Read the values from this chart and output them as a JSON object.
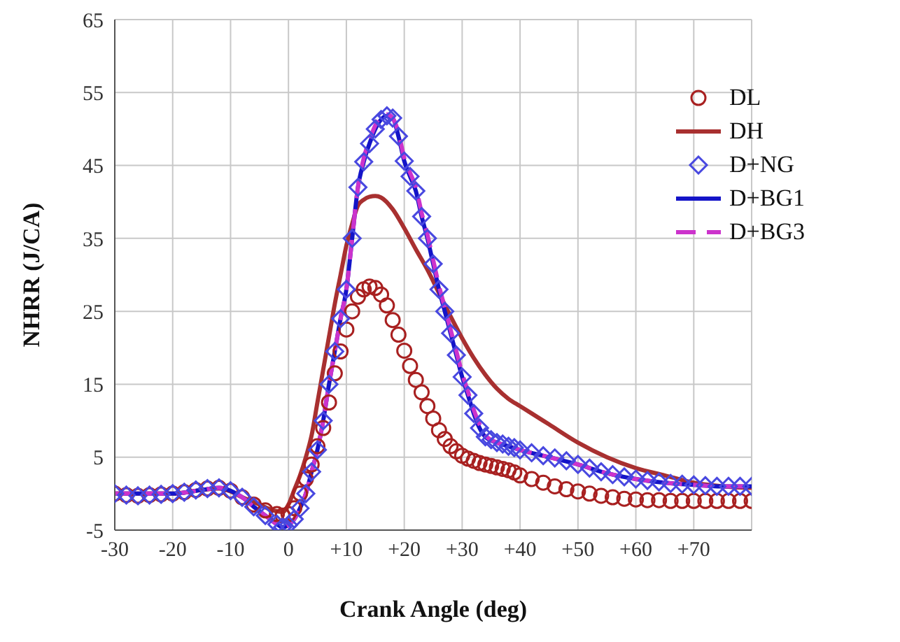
{
  "chart_data": {
    "type": "line",
    "xlabel": "Crank Angle (deg)",
    "ylabel": "NHRR (J/CA)",
    "xlim": [
      -30,
      80
    ],
    "xticks": [
      -30,
      -20,
      -10,
      {
        "value": 0,
        "label": "0"
      },
      {
        "value": 10,
        "label": "+10"
      },
      {
        "value": 20,
        "label": "+20"
      },
      {
        "value": 30,
        "label": "+30"
      },
      {
        "value": 40,
        "label": "+40"
      },
      {
        "value": 50,
        "label": "+50"
      },
      {
        "value": 60,
        "label": "+60"
      },
      {
        "value": 70,
        "label": "+70"
      },
      {
        "value": 80,
        "label": null
      }
    ],
    "ylim": [
      -5,
      65
    ],
    "yticks": [
      -5,
      5,
      15,
      25,
      35,
      45,
      55,
      65
    ],
    "grid": true,
    "legend": "top right",
    "series": [
      {
        "name": "DL",
        "type": "scatter",
        "marker": "circle",
        "color": "#a82020",
        "x": [
          -30,
          -28,
          -26,
          -24,
          -22,
          -20,
          -18,
          -16,
          -14,
          -12,
          -10,
          -8,
          -6,
          -4,
          -2,
          -1,
          0,
          1,
          2,
          3,
          4,
          5,
          6,
          7,
          8,
          9,
          10,
          11,
          12,
          13,
          14,
          15,
          16,
          17,
          18,
          19,
          20,
          21,
          22,
          23,
          24,
          25,
          26,
          27,
          28,
          29,
          30,
          31,
          32,
          33,
          34,
          35,
          36,
          37,
          38,
          39,
          40,
          42,
          44,
          46,
          48,
          50,
          52,
          54,
          56,
          58,
          60,
          62,
          64,
          66,
          68,
          70,
          72,
          74,
          76,
          78,
          80
        ],
        "values": [
          0,
          -0.2,
          -0.3,
          -0.2,
          -0.1,
          0,
          0.2,
          0.5,
          0.7,
          0.8,
          0.4,
          -0.5,
          -1.5,
          -2.3,
          -2.8,
          -3,
          -2.8,
          -2,
          0,
          2,
          4,
          6.5,
          9,
          12.5,
          16.5,
          19.5,
          22.5,
          25,
          27,
          28,
          28.4,
          28.2,
          27.3,
          25.8,
          23.8,
          21.8,
          19.6,
          17.5,
          15.6,
          13.9,
          12,
          10.3,
          8.7,
          7.5,
          6.5,
          5.8,
          5.2,
          4.8,
          4.5,
          4.2,
          4,
          3.8,
          3.6,
          3.4,
          3.2,
          2.9,
          2.5,
          2,
          1.5,
          1,
          0.6,
          0.3,
          0,
          -0.3,
          -0.5,
          -0.7,
          -0.8,
          -0.9,
          -0.9,
          -1,
          -1,
          -1,
          -1,
          -1,
          -1,
          -1,
          -1
        ]
      },
      {
        "name": "DH",
        "type": "line",
        "marker": "none",
        "line_style": "solid",
        "color": "#a83030",
        "x": [
          -30,
          -20,
          -15,
          -12,
          -10,
          -8,
          -5,
          -3,
          -1,
          0,
          1,
          2,
          3,
          4,
          5,
          6,
          7,
          8,
          9,
          10,
          11,
          12,
          13,
          14,
          15,
          16,
          18,
          20,
          22,
          24,
          26,
          28,
          30,
          32,
          34,
          36,
          38,
          40,
          42,
          45,
          50,
          55,
          60,
          65,
          70,
          75,
          80
        ],
        "values": [
          0,
          0,
          0.5,
          0.7,
          0.3,
          -0.5,
          -1.5,
          -2.2,
          -2.5,
          -1.5,
          0.5,
          2.5,
          5,
          8,
          12.5,
          17,
          21.5,
          26,
          30,
          34,
          37,
          39.5,
          40.3,
          40.7,
          40.8,
          40.6,
          39,
          36.4,
          33.5,
          30.7,
          27.5,
          24.3,
          21.3,
          18.6,
          16.3,
          14.4,
          13,
          12,
          11,
          9.5,
          7,
          5,
          3.5,
          2.5,
          1.5,
          1,
          0.8
        ]
      },
      {
        "name": "D+NG",
        "type": "scatter",
        "marker": "diamond",
        "color": "#4848e0",
        "x": [
          -30,
          -28,
          -26,
          -24,
          -22,
          -20,
          -18,
          -16,
          -14,
          -12,
          -10,
          -8,
          -6,
          -4,
          -2,
          -1,
          0,
          1,
          2,
          3,
          4,
          5,
          6,
          7,
          8,
          9,
          10,
          11,
          12,
          13,
          14,
          15,
          16,
          17,
          18,
          19,
          20,
          21,
          22,
          23,
          24,
          25,
          26,
          27,
          28,
          29,
          30,
          31,
          32,
          33,
          34,
          35,
          36,
          37,
          38,
          39,
          40,
          42,
          44,
          46,
          48,
          50,
          52,
          54,
          56,
          58,
          60,
          62,
          64,
          66,
          68,
          70,
          72,
          74,
          76,
          78,
          80
        ],
        "values": [
          0,
          -0.2,
          -0.3,
          -0.2,
          -0.1,
          0,
          0.2,
          0.5,
          0.7,
          0.8,
          0.4,
          -0.5,
          -1.8,
          -3,
          -4.2,
          -4.6,
          -4.3,
          -3.5,
          -2,
          0,
          3,
          6,
          10,
          15,
          19.5,
          24,
          28,
          35,
          42,
          45.5,
          48,
          50,
          51.3,
          51.8,
          51.5,
          49,
          45.6,
          43.5,
          41.5,
          38,
          35,
          31.5,
          28,
          25,
          22,
          19,
          16,
          13.5,
          11,
          9,
          7.8,
          7.4,
          7,
          6.8,
          6.5,
          6.3,
          6,
          5.6,
          5.2,
          4.9,
          4.5,
          4,
          3.5,
          3,
          2.6,
          2.3,
          2,
          1.8,
          1.6,
          1.4,
          1.3,
          1.2,
          1.1,
          1,
          1,
          1,
          1
        ]
      },
      {
        "name": "D+BG1",
        "type": "line",
        "marker": "none",
        "line_style": "solid",
        "color": "#1414c8",
        "x": [
          -30,
          -20,
          -15,
          -12,
          -10,
          -8,
          -6,
          -4,
          -2,
          -1,
          0,
          1,
          2,
          3,
          4,
          5,
          6,
          7,
          8,
          9,
          10,
          11,
          12,
          13,
          14,
          15,
          16,
          17,
          18,
          19,
          20,
          21,
          22,
          23,
          24,
          25,
          26,
          27,
          28,
          29,
          30,
          31,
          32,
          33,
          34,
          36,
          38,
          40,
          45,
          50,
          55,
          60,
          65,
          70,
          75,
          80
        ],
        "values": [
          0,
          0,
          0.5,
          0.8,
          0.4,
          -0.5,
          -1.8,
          -3,
          -4.2,
          -4.6,
          -4.3,
          -3.5,
          -2,
          0,
          3,
          6,
          10,
          15,
          19.5,
          24,
          28,
          35,
          42,
          45.5,
          48,
          50,
          51.3,
          51.8,
          51.5,
          49,
          45.6,
          43.5,
          41.5,
          38,
          35,
          31.5,
          28,
          25,
          22,
          19,
          16,
          13.5,
          11,
          9,
          7.8,
          7,
          6.5,
          6,
          5,
          4,
          2.8,
          2,
          1.5,
          1.2,
          1,
          1
        ]
      },
      {
        "name": "D+BG3",
        "type": "line",
        "marker": "none",
        "line_style": "dashed",
        "color": "#cc33cc",
        "x": [
          -30,
          -20,
          -15,
          -12,
          -10,
          -8,
          -6,
          -4,
          -2,
          -1,
          0,
          1,
          2,
          3,
          4,
          5,
          6,
          7,
          8,
          9,
          10,
          11,
          12,
          13,
          14,
          15,
          16,
          17,
          18,
          19,
          20,
          21,
          22,
          23,
          24,
          25,
          26,
          27,
          28,
          29,
          30,
          31,
          32,
          33,
          34,
          36,
          38,
          40,
          45,
          50,
          55,
          60,
          65,
          70,
          75,
          80
        ],
        "values": [
          0,
          0,
          0.5,
          0.8,
          0.4,
          -0.5,
          -1.8,
          -3,
          -4.2,
          -4.6,
          -4.3,
          -3.5,
          -2,
          0,
          3,
          6,
          10,
          15,
          19.5,
          24,
          28,
          35,
          42,
          46,
          48.5,
          50.5,
          51.8,
          52,
          51.5,
          49.5,
          46,
          44,
          42,
          38.5,
          35.5,
          32,
          28.5,
          25.5,
          22.5,
          19.5,
          16.5,
          14,
          11.5,
          9.5,
          8,
          7,
          6.5,
          6,
          5,
          4,
          2.8,
          2,
          1.5,
          1.2,
          1,
          1
        ]
      }
    ]
  }
}
